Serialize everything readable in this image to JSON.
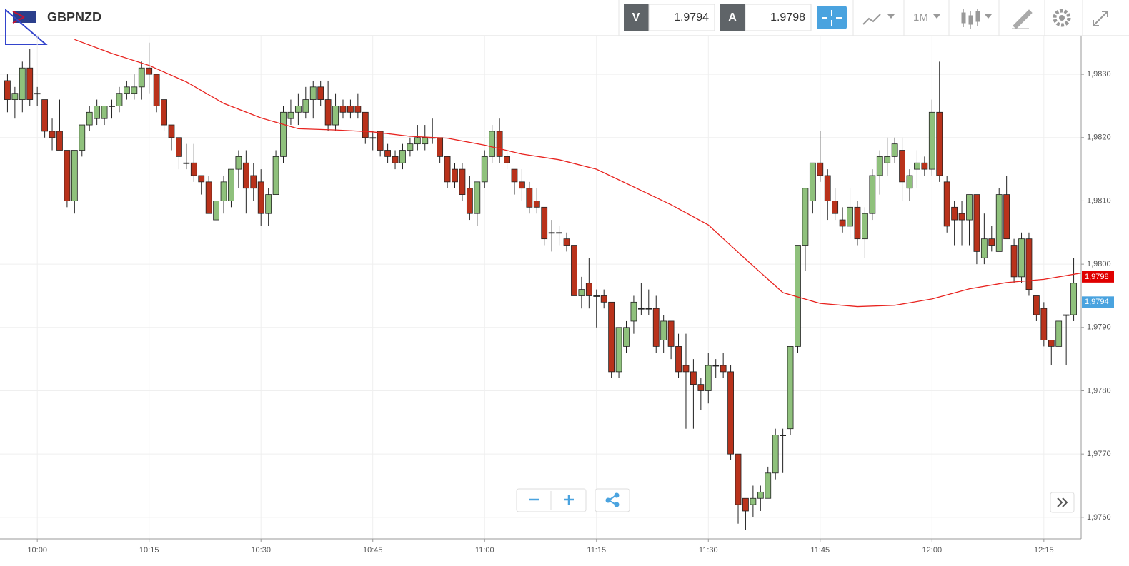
{
  "header": {
    "symbol": "GBPNZD",
    "bid_label": "V",
    "bid": "1.9794",
    "ask_label": "A",
    "ask": "1.9798",
    "timeframe": "1M"
  },
  "chart_data": {
    "type": "candlestick",
    "x": [
      "09:56",
      "09:57",
      "09:58",
      "09:59",
      "10:00",
      "10:01",
      "10:02",
      "10:03",
      "10:04",
      "10:05",
      "10:06",
      "10:07",
      "10:08",
      "10:09",
      "10:10",
      "10:11",
      "10:12",
      "10:13",
      "10:14",
      "10:15",
      "10:16",
      "10:17",
      "10:18",
      "10:19",
      "10:20",
      "10:21",
      "10:22",
      "10:23",
      "10:24",
      "10:25",
      "10:26",
      "10:27",
      "10:28",
      "10:29",
      "10:30",
      "10:31",
      "10:32",
      "10:33",
      "10:34",
      "10:35",
      "10:36",
      "10:37",
      "10:38",
      "10:39",
      "10:40",
      "10:41",
      "10:42",
      "10:43",
      "10:44",
      "10:45",
      "10:46",
      "10:47",
      "10:48",
      "10:49",
      "10:50",
      "10:51",
      "10:52",
      "10:53",
      "10:54",
      "10:55",
      "10:56",
      "10:57",
      "10:58",
      "10:59",
      "11:00",
      "11:01",
      "11:02",
      "11:03",
      "11:04",
      "11:05",
      "11:06",
      "11:07",
      "11:08",
      "11:09",
      "11:10",
      "11:11",
      "11:12",
      "11:13",
      "11:14",
      "11:15",
      "11:16",
      "11:17",
      "11:18",
      "11:19",
      "11:20",
      "11:21",
      "11:22",
      "11:23",
      "11:24",
      "11:25",
      "11:26",
      "11:27",
      "11:28",
      "11:29",
      "11:30",
      "11:31",
      "11:32",
      "11:33",
      "11:34",
      "11:35",
      "11:36",
      "11:37",
      "11:38",
      "11:39",
      "11:40",
      "11:41",
      "11:42",
      "11:43",
      "11:44",
      "11:45",
      "11:46",
      "11:47",
      "11:48",
      "11:49",
      "11:50",
      "11:51",
      "11:52",
      "11:53",
      "11:54",
      "11:55",
      "11:56",
      "11:57",
      "11:58",
      "11:59",
      "12:00",
      "12:01",
      "12:02",
      "12:03",
      "12:04",
      "12:05",
      "12:06",
      "12:07",
      "12:08",
      "12:09",
      "12:10",
      "12:11",
      "12:12",
      "12:13",
      "12:14",
      "12:15",
      "12:16",
      "12:17",
      "12:18",
      "12:19"
    ],
    "open": [
      1.9829,
      1.9826,
      1.9826,
      1.9831,
      1.9827,
      1.9826,
      1.9821,
      1.9821,
      1.9818,
      1.981,
      1.9818,
      1.9822,
      1.9823,
      1.9823,
      1.9825,
      1.9825,
      1.9827,
      1.9827,
      1.9828,
      1.9831,
      1.983,
      1.9826,
      1.9822,
      1.982,
      1.9816,
      1.9816,
      1.9814,
      1.9813,
      1.9807,
      1.981,
      1.981,
      1.9815,
      1.9816,
      1.9814,
      1.9813,
      1.9808,
      1.9811,
      1.9817,
      1.9823,
      1.9824,
      1.9824,
      1.9826,
      1.9828,
      1.9826,
      1.9822,
      1.9825,
      1.9825,
      1.9825,
      1.9824,
      1.982,
      1.9821,
      1.9818,
      1.9817,
      1.9816,
      1.9818,
      1.9819,
      1.9819,
      1.982,
      1.982,
      1.9817,
      1.9815,
      1.9815,
      1.9812,
      1.9808,
      1.9813,
      1.9817,
      1.9821,
      1.9817,
      1.9815,
      1.9813,
      1.9812,
      1.981,
      1.9809,
      1.9805,
      1.9805,
      1.9804,
      1.9803,
      1.9795,
      1.9797,
      1.9795,
      1.9795,
      1.9794,
      1.9783,
      1.9787,
      1.9791,
      1.9793,
      1.9793,
      1.9793,
      1.9788,
      1.9791,
      1.9787,
      1.9784,
      1.9783,
      1.9781,
      1.978,
      1.9784,
      1.9784,
      1.9783,
      1.977,
      1.9763,
      1.9762,
      1.9763,
      1.9763,
      1.9767,
      1.9773,
      1.9774,
      1.9787,
      1.9803,
      1.981,
      1.9816,
      1.9814,
      1.981,
      1.9807,
      1.9806,
      1.9809,
      1.9804,
      1.9808,
      1.9814,
      1.9816,
      1.9817,
      1.9818,
      1.9812,
      1.9815,
      1.9816,
      1.9815,
      1.9824,
      1.9813,
      1.9809,
      1.9808,
      1.9807,
      1.9811,
      1.9801,
      1.9804,
      1.9802,
      1.9811,
      1.9803,
      1.9798,
      1.9804,
      1.9795,
      1.9793,
      1.9788,
      1.9787,
      1.9792,
      1.9792
    ],
    "high": [
      1.983,
      1.9828,
      1.9832,
      1.9834,
      1.9828,
      1.9826,
      1.9823,
      1.9826,
      1.9818,
      1.9818,
      1.9822,
      1.9825,
      1.9826,
      1.9825,
      1.9826,
      1.9828,
      1.9829,
      1.983,
      1.9832,
      1.9835,
      1.983,
      1.9826,
      1.9822,
      1.982,
      1.9819,
      1.9819,
      1.9814,
      1.9814,
      1.981,
      1.9814,
      1.9815,
      1.9818,
      1.9818,
      1.9816,
      1.9815,
      1.9812,
      1.9818,
      1.9825,
      1.9826,
      1.9827,
      1.9828,
      1.9829,
      1.9829,
      1.9829,
      1.9827,
      1.9826,
      1.9826,
      1.9827,
      1.9824,
      1.9821,
      1.9821,
      1.9819,
      1.9818,
      1.9819,
      1.982,
      1.9822,
      1.9822,
      1.9823,
      1.982,
      1.9817,
      1.9816,
      1.9816,
      1.9814,
      1.9813,
      1.9818,
      1.9822,
      1.9823,
      1.9818,
      1.9815,
      1.9815,
      1.9813,
      1.9812,
      1.9809,
      1.9807,
      1.9806,
      1.9805,
      1.9803,
      1.9798,
      1.9801,
      1.9796,
      1.9796,
      1.9794,
      1.979,
      1.9791,
      1.9795,
      1.9797,
      1.9796,
      1.9795,
      1.9792,
      1.9791,
      1.9789,
      1.9789,
      1.9785,
      1.9782,
      1.9786,
      1.9785,
      1.9786,
      1.9784,
      1.977,
      1.9763,
      1.9765,
      1.9765,
      1.9768,
      1.9774,
      1.9774,
      1.9787,
      1.9803,
      1.9812,
      1.9816,
      1.9821,
      1.9815,
      1.9812,
      1.9809,
      1.9812,
      1.981,
      1.9809,
      1.9815,
      1.9818,
      1.982,
      1.982,
      1.982,
      1.9815,
      1.9818,
      1.9817,
      1.9826,
      1.9832,
      1.9814,
      1.981,
      1.981,
      1.9811,
      1.9811,
      1.9808,
      1.9806,
      1.9812,
      1.9814,
      1.9804,
      1.9805,
      1.9805,
      1.9795,
      1.9794,
      1.9788,
      1.9791,
      1.9792,
      1.9801
    ],
    "low": [
      1.9824,
      1.9823,
      1.9824,
      1.9825,
      1.9825,
      1.982,
      1.9818,
      1.9818,
      1.9809,
      1.9808,
      1.9817,
      1.9821,
      1.9822,
      1.9822,
      1.9823,
      1.9824,
      1.9826,
      1.9826,
      1.9826,
      1.9827,
      1.9824,
      1.9821,
      1.9818,
      1.9815,
      1.9815,
      1.9813,
      1.9811,
      1.9808,
      1.9807,
      1.9808,
      1.9809,
      1.9812,
      1.9808,
      1.981,
      1.9806,
      1.9806,
      1.9811,
      1.9816,
      1.9822,
      1.9822,
      1.9823,
      1.9823,
      1.9825,
      1.9821,
      1.9821,
      1.9823,
      1.9823,
      1.9823,
      1.9819,
      1.9818,
      1.9817,
      1.9816,
      1.9815,
      1.9815,
      1.9817,
      1.9818,
      1.9818,
      1.9819,
      1.9816,
      1.9812,
      1.9812,
      1.981,
      1.9807,
      1.9806,
      1.9812,
      1.9816,
      1.9816,
      1.9815,
      1.9811,
      1.981,
      1.9808,
      1.9808,
      1.9803,
      1.9802,
      1.9803,
      1.9802,
      1.9795,
      1.9793,
      1.9793,
      1.979,
      1.9793,
      1.9782,
      1.9782,
      1.9786,
      1.9789,
      1.9792,
      1.9792,
      1.9786,
      1.9786,
      1.9785,
      1.9782,
      1.9774,
      1.9774,
      1.9777,
      1.9778,
      1.9782,
      1.9782,
      1.9769,
      1.9759,
      1.9758,
      1.976,
      1.9761,
      1.9763,
      1.9766,
      1.9767,
      1.9773,
      1.9786,
      1.9799,
      1.9808,
      1.9813,
      1.9807,
      1.9807,
      1.9805,
      1.9804,
      1.9803,
      1.9801,
      1.9807,
      1.9811,
      1.9814,
      1.9816,
      1.981,
      1.981,
      1.9812,
      1.9814,
      1.9814,
      1.9813,
      1.9805,
      1.9803,
      1.9803,
      1.9803,
      1.98,
      1.98,
      1.9802,
      1.9802,
      1.9804,
      1.9797,
      1.9797,
      1.9795,
      1.9791,
      1.9787,
      1.9784,
      1.9787,
      1.9784,
      1.9791
    ],
    "close": [
      1.9826,
      1.9827,
      1.9831,
      1.9826,
      1.9827,
      1.9821,
      1.982,
      1.9818,
      1.981,
      1.9818,
      1.9822,
      1.9824,
      1.9825,
      1.9825,
      1.9825,
      1.9827,
      1.9828,
      1.9828,
      1.9831,
      1.983,
      1.9825,
      1.9822,
      1.982,
      1.9817,
      1.9816,
      1.9814,
      1.9813,
      1.9808,
      1.981,
      1.9813,
      1.9815,
      1.9817,
      1.9812,
      1.9812,
      1.9808,
      1.9811,
      1.9817,
      1.9824,
      1.9824,
      1.9825,
      1.9826,
      1.9828,
      1.9826,
      1.9822,
      1.9825,
      1.9824,
      1.9824,
      1.9824,
      1.982,
      1.982,
      1.9818,
      1.9817,
      1.9816,
      1.9818,
      1.9819,
      1.982,
      1.982,
      1.982,
      1.9817,
      1.9813,
      1.9813,
      1.9811,
      1.9808,
      1.9813,
      1.9817,
      1.9821,
      1.9817,
      1.9816,
      1.9813,
      1.9812,
      1.9809,
      1.9809,
      1.9804,
      1.9805,
      1.9805,
      1.9803,
      1.9795,
      1.9796,
      1.9795,
      1.9795,
      1.9794,
      1.9783,
      1.979,
      1.979,
      1.9794,
      1.9793,
      1.9793,
      1.9787,
      1.9791,
      1.9787,
      1.9783,
      1.9783,
      1.9781,
      1.978,
      1.9784,
      1.9784,
      1.9783,
      1.977,
      1.9762,
      1.9761,
      1.9763,
      1.9764,
      1.9767,
      1.9773,
      1.9773,
      1.9787,
      1.9803,
      1.9812,
      1.9816,
      1.9814,
      1.981,
      1.9808,
      1.9806,
      1.9809,
      1.9804,
      1.9808,
      1.9814,
      1.9817,
      1.9817,
      1.9819,
      1.9813,
      1.9814,
      1.9816,
      1.9815,
      1.9824,
      1.9814,
      1.9806,
      1.9807,
      1.9807,
      1.9811,
      1.9802,
      1.9804,
      1.9803,
      1.9811,
      1.9804,
      1.9798,
      1.9804,
      1.9796,
      1.9792,
      1.9788,
      1.9787,
      1.9791,
      1.9792,
      1.9797
    ],
    "up_color": "#8fc17c",
    "down_color": "#b9321b",
    "moving_average": {
      "color": "#e8231f",
      "x": [
        "10:05",
        "10:10",
        "10:15",
        "10:20",
        "10:25",
        "10:30",
        "10:35",
        "10:40",
        "10:45",
        "10:50",
        "10:55",
        "11:00",
        "11:05",
        "11:10",
        "11:15",
        "11:20",
        "11:25",
        "11:30",
        "11:35",
        "11:40",
        "11:45",
        "11:50",
        "11:55",
        "12:00",
        "12:05",
        "12:10",
        "12:15",
        "12:20"
      ],
      "values": [
        1.98355,
        1.98333,
        1.98314,
        1.98288,
        1.98254,
        1.98231,
        1.98214,
        1.98212,
        1.98209,
        1.98202,
        1.98199,
        1.98188,
        1.98174,
        1.98165,
        1.9815,
        1.98122,
        1.98094,
        1.98062,
        1.98008,
        1.97955,
        1.97938,
        1.97933,
        1.97935,
        1.97945,
        1.97961,
        1.97971,
        1.97976,
        1.97986
      ]
    },
    "price_markers": [
      {
        "value": 1.9798,
        "label": "1,9798",
        "color": "#e00000"
      },
      {
        "value": 1.9794,
        "label": "1,9794",
        "color": "#4aa3df"
      }
    ],
    "xlim": [
      "09:55",
      "12:20"
    ],
    "xticks": [
      "10:00",
      "10:15",
      "10:30",
      "10:45",
      "11:00",
      "11:15",
      "11:30",
      "11:45",
      "12:00",
      "12:15"
    ],
    "ylim": [
      1.97566,
      1.98361
    ],
    "yticks": [
      {
        "value": 1.976,
        "label": "1,9760"
      },
      {
        "value": 1.977,
        "label": "1,9770"
      },
      {
        "value": 1.978,
        "label": "1,9780"
      },
      {
        "value": 1.979,
        "label": "1,9790"
      },
      {
        "value": 1.98,
        "label": "1,9800"
      },
      {
        "value": 1.981,
        "label": "1,9810"
      },
      {
        "value": 1.982,
        "label": "1,9820"
      },
      {
        "value": 1.983,
        "label": "1,9830"
      }
    ],
    "grid": true
  }
}
